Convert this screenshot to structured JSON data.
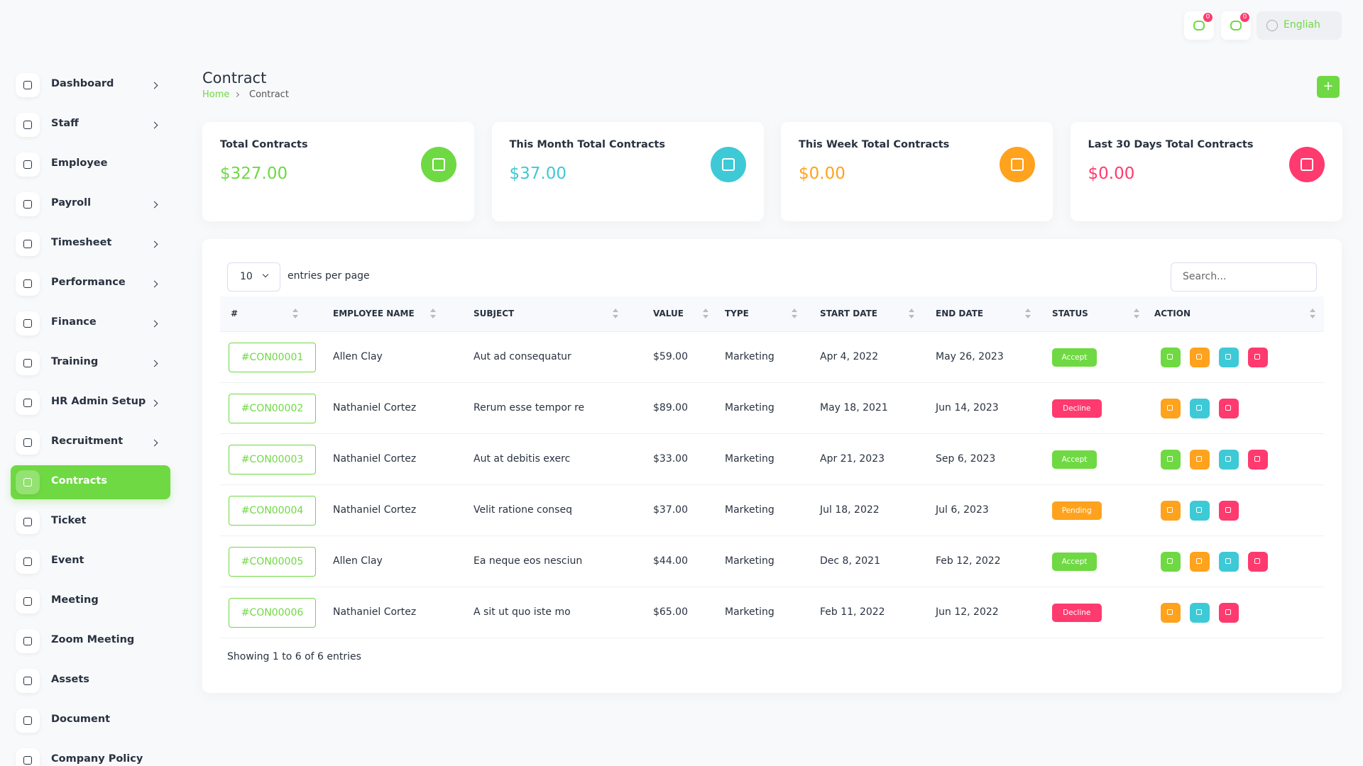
{
  "header": {
    "notifications": [
      0,
      0
    ],
    "language": "Engliah"
  },
  "sidebar": {
    "items": [
      {
        "label": "Dashboard",
        "submenu": true
      },
      {
        "label": "Staff",
        "submenu": true
      },
      {
        "label": "Employee",
        "submenu": false
      },
      {
        "label": "Payroll",
        "submenu": true
      },
      {
        "label": "Timesheet",
        "submenu": true
      },
      {
        "label": "Performance",
        "submenu": true
      },
      {
        "label": "Finance",
        "submenu": true
      },
      {
        "label": "Training",
        "submenu": true
      },
      {
        "label": "HR Admin Setup",
        "submenu": true
      },
      {
        "label": "Recruitment",
        "submenu": true
      },
      {
        "label": "Contracts",
        "submenu": false,
        "active": true
      },
      {
        "label": "Ticket",
        "submenu": false
      },
      {
        "label": "Event",
        "submenu": false
      },
      {
        "label": "Meeting",
        "submenu": false
      },
      {
        "label": "Zoom Meeting",
        "submenu": false
      },
      {
        "label": "Assets",
        "submenu": false
      },
      {
        "label": "Document",
        "submenu": false
      },
      {
        "label": "Company Policy",
        "submenu": false
      }
    ]
  },
  "page": {
    "title": "Contract",
    "breadcrumb": [
      "Home",
      "Contract"
    ]
  },
  "stats": [
    {
      "label": "Total Contracts",
      "value": "$327.00",
      "color": "#6fd943"
    },
    {
      "label": "This Month Total Contracts",
      "value": "$37.00",
      "color": "#3ec9d6"
    },
    {
      "label": "This Week Total Contracts",
      "value": "$0.00",
      "color": "#ffa21d"
    },
    {
      "label": "Last 30 Days Total Contracts",
      "value": "$0.00",
      "color": "#ff3a6e"
    }
  ],
  "table": {
    "page_size": 10,
    "page_size_label": "entries per page",
    "search_placeholder": "Search...",
    "columns": [
      "#",
      "EMPLOYEE NAME",
      "SUBJECT",
      "VALUE",
      "TYPE",
      "START DATE",
      "END DATE",
      "STATUS",
      "ACTION"
    ],
    "rows": [
      {
        "id": "#CON00001",
        "employee": "Allen Clay",
        "subject": "Aut ad consequatur",
        "value": "$59.00",
        "type": "Marketing",
        "start": "Apr 4, 2022",
        "end": "May 26, 2023",
        "status": "Accept",
        "status_color": "#6fd943",
        "actions": [
          "copy",
          "view",
          "edit",
          "delete"
        ]
      },
      {
        "id": "#CON00002",
        "employee": "Nathaniel Cortez",
        "subject": "Rerum esse tempor re",
        "value": "$89.00",
        "type": "Marketing",
        "start": "May 18, 2021",
        "end": "Jun 14, 2023",
        "status": "Decline",
        "status_color": "#ff3a6e",
        "actions": [
          "view",
          "edit",
          "delete"
        ]
      },
      {
        "id": "#CON00003",
        "employee": "Nathaniel Cortez",
        "subject": "Aut at debitis exerc",
        "value": "$33.00",
        "type": "Marketing",
        "start": "Apr 21, 2023",
        "end": "Sep 6, 2023",
        "status": "Accept",
        "status_color": "#6fd943",
        "actions": [
          "copy",
          "view",
          "edit",
          "delete"
        ]
      },
      {
        "id": "#CON00004",
        "employee": "Nathaniel Cortez",
        "subject": "Velit ratione conseq",
        "value": "$37.00",
        "type": "Marketing",
        "start": "Jul 18, 2022",
        "end": "Jul 6, 2023",
        "status": "Pending",
        "status_color": "#ffa21d",
        "actions": [
          "view",
          "edit",
          "delete"
        ]
      },
      {
        "id": "#CON00005",
        "employee": "Allen Clay",
        "subject": "Ea neque eos nesciun",
        "value": "$44.00",
        "type": "Marketing",
        "start": "Dec 8, 2021",
        "end": "Feb 12, 2022",
        "status": "Accept",
        "status_color": "#6fd943",
        "actions": [
          "copy",
          "view",
          "edit",
          "delete"
        ]
      },
      {
        "id": "#CON00006",
        "employee": "Nathaniel Cortez",
        "subject": "A sit ut quo iste mo",
        "value": "$65.00",
        "type": "Marketing",
        "start": "Feb 11, 2022",
        "end": "Jun 12, 2022",
        "status": "Decline",
        "status_color": "#ff3a6e",
        "actions": [
          "view",
          "edit",
          "delete"
        ]
      }
    ],
    "footer": "Showing 1 to 6 of 6 entries"
  }
}
